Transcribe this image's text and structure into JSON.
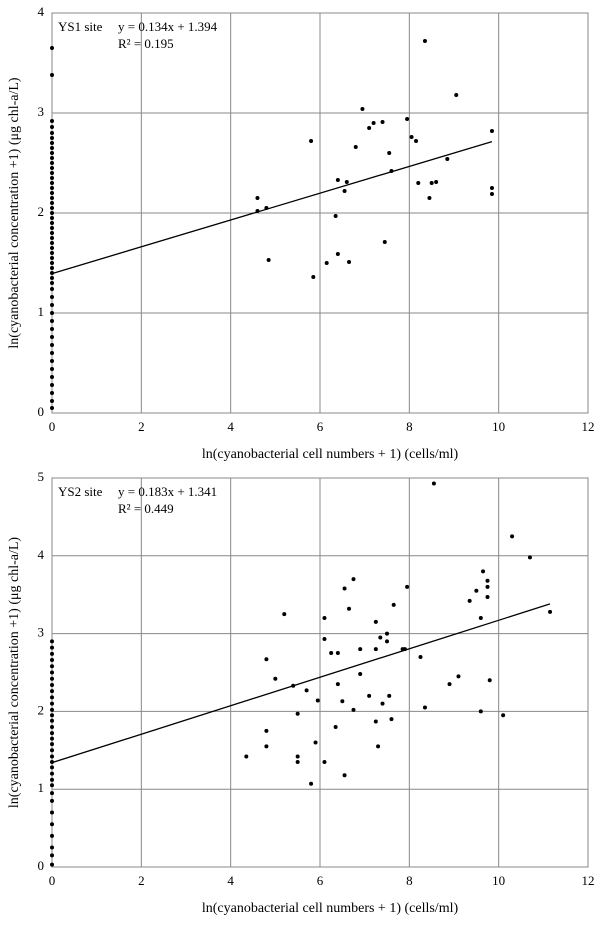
{
  "chart_data": [
    {
      "type": "scatter",
      "annotations": [
        "YS1 site",
        "y = 0.134x + 1.394",
        "R² = 0.195"
      ],
      "xlabel": "ln(cyanobacterial cell numbers + 1) (cells/ml)",
      "ylabel": "ln(cyanobacterial concentration +1)  (μg chl-a/L)",
      "xlim": [
        0,
        12
      ],
      "xticks": [
        0,
        2,
        4,
        6,
        8,
        10,
        12
      ],
      "ylim": [
        0,
        4
      ],
      "yticks": [
        0,
        1,
        2,
        3,
        4
      ],
      "grid": true,
      "color": "#000000",
      "trendline": {
        "slope": 0.134,
        "intercept": 1.394,
        "xlim": [
          0,
          9.85
        ]
      },
      "x": [
        4.6,
        4.6,
        4.8,
        4.85,
        5.8,
        5.85,
        6.15,
        6.35,
        6.4,
        6.4,
        6.55,
        6.6,
        6.65,
        6.8,
        6.95,
        7.1,
        7.2,
        7.4,
        7.45,
        7.55,
        7.6,
        7.95,
        8.05,
        8.15,
        8.2,
        8.35,
        8.45,
        8.5,
        8.6,
        8.85,
        9.05,
        9.85,
        9.85,
        9.85,
        0,
        0,
        0,
        0,
        0,
        0,
        0,
        0,
        0,
        0,
        0,
        0,
        0,
        0,
        0,
        0,
        0,
        0,
        0,
        0,
        0,
        0,
        0,
        0,
        0,
        0,
        0,
        0,
        0,
        0,
        0,
        0,
        0,
        0,
        0,
        0,
        0,
        0,
        0,
        0,
        0,
        0,
        0,
        0,
        0,
        0,
        0,
        0,
        0,
        0,
        0
      ],
      "values": [
        2.15,
        2.02,
        2.05,
        1.53,
        2.72,
        1.36,
        1.5,
        1.97,
        1.59,
        2.33,
        2.22,
        2.31,
        1.51,
        2.66,
        3.04,
        2.85,
        2.9,
        2.91,
        1.71,
        2.6,
        2.42,
        2.94,
        2.76,
        2.72,
        2.3,
        3.72,
        2.15,
        2.3,
        2.31,
        2.54,
        3.18,
        2.82,
        2.25,
        2.19,
        0.05,
        0.12,
        0.2,
        0.28,
        0.36,
        0.44,
        0.52,
        0.6,
        0.68,
        0.76,
        0.84,
        0.92,
        1.0,
        1.08,
        1.16,
        1.24,
        1.3,
        1.35,
        1.4,
        1.45,
        1.5,
        1.55,
        1.6,
        1.65,
        1.7,
        1.75,
        1.8,
        1.85,
        1.9,
        1.95,
        2.0,
        2.05,
        2.1,
        2.15,
        2.2,
        2.25,
        2.3,
        2.35,
        2.4,
        2.45,
        2.5,
        2.55,
        2.6,
        2.65,
        2.7,
        2.75,
        2.8,
        2.86,
        2.92,
        3.38,
        3.65
      ]
    },
    {
      "type": "scatter",
      "annotations": [
        "YS2 site",
        "y = 0.183x + 1.341",
        "R² = 0.449"
      ],
      "xlabel": "ln(cyanobacterial cell numbers + 1) (cells/ml)",
      "ylabel": "ln(cyanobacterial concentration +1)  (μg chl-a/L)",
      "xlim": [
        0,
        12
      ],
      "xticks": [
        0,
        2,
        4,
        6,
        8,
        10,
        12
      ],
      "ylim": [
        0,
        5
      ],
      "yticks": [
        0,
        1,
        2,
        3,
        4,
        5
      ],
      "grid": true,
      "color": "#000000",
      "trendline": {
        "slope": 0.183,
        "intercept": 1.341,
        "xlim": [
          0,
          11.15
        ]
      },
      "x": [
        4.35,
        4.8,
        4.8,
        4.8,
        5.0,
        5.2,
        5.4,
        5.5,
        5.5,
        5.5,
        5.7,
        5.8,
        5.9,
        5.95,
        6.1,
        6.1,
        6.1,
        6.25,
        6.35,
        6.4,
        6.4,
        6.5,
        6.55,
        6.55,
        6.65,
        6.75,
        6.75,
        6.9,
        6.9,
        7.1,
        7.25,
        7.25,
        7.25,
        7.3,
        7.35,
        7.4,
        7.5,
        7.5,
        7.55,
        7.6,
        7.65,
        7.85,
        7.9,
        7.95,
        8.25,
        8.35,
        8.55,
        8.9,
        9.1,
        9.35,
        9.5,
        9.6,
        9.6,
        9.65,
        9.75,
        9.75,
        9.75,
        9.8,
        10.1,
        10.3,
        10.7,
        11.15,
        0,
        0,
        0,
        0,
        0,
        0,
        0,
        0,
        0,
        0,
        0,
        0,
        0,
        0,
        0,
        0,
        0,
        0,
        0,
        0,
        0,
        0,
        0,
        0,
        0,
        0,
        0,
        0,
        0,
        0,
        0,
        0,
        0
      ],
      "values": [
        1.42,
        2.67,
        1.75,
        1.55,
        2.42,
        3.25,
        2.33,
        1.97,
        1.42,
        1.35,
        2.27,
        1.07,
        1.6,
        2.14,
        3.2,
        2.93,
        1.35,
        2.75,
        1.8,
        2.75,
        2.35,
        2.13,
        3.58,
        1.18,
        3.32,
        3.7,
        2.02,
        2.8,
        2.48,
        2.2,
        3.15,
        2.8,
        1.87,
        1.55,
        2.95,
        2.1,
        2.9,
        3.0,
        2.2,
        1.9,
        3.37,
        2.8,
        2.8,
        3.6,
        2.7,
        2.05,
        4.93,
        2.35,
        2.45,
        3.42,
        3.55,
        3.2,
        2.0,
        3.8,
        3.68,
        3.6,
        3.47,
        2.4,
        1.95,
        4.25,
        3.98,
        3.28,
        0.03,
        0.15,
        0.25,
        0.4,
        0.55,
        0.7,
        0.85,
        0.95,
        1.05,
        1.12,
        1.2,
        1.28,
        1.35,
        1.42,
        1.5,
        1.58,
        1.65,
        1.72,
        1.8,
        1.88,
        1.95,
        2.02,
        2.1,
        2.18,
        2.26,
        2.34,
        2.42,
        2.5,
        2.58,
        2.66,
        2.74,
        2.82,
        2.9
      ]
    }
  ]
}
